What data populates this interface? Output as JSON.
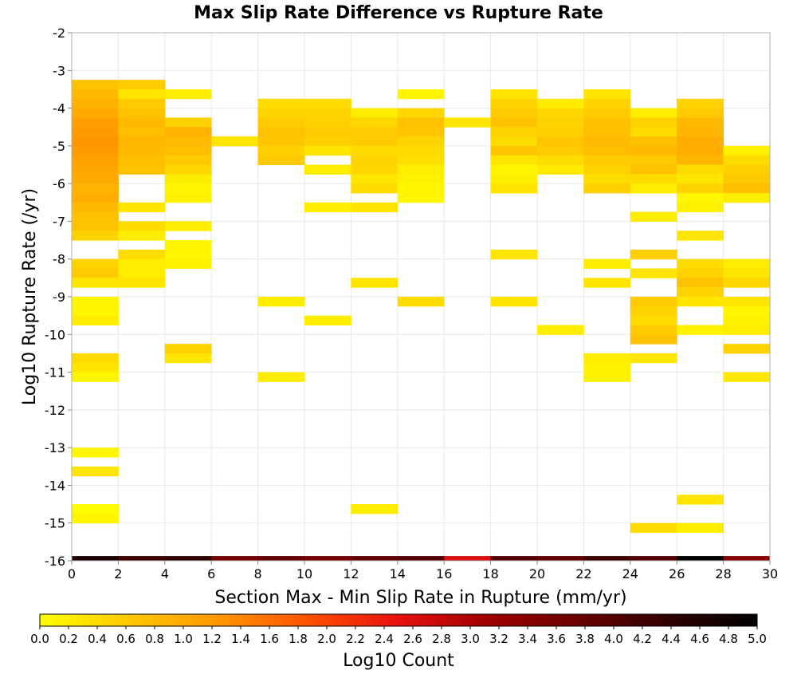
{
  "chart_data": {
    "type": "heatmap",
    "title": "Max Slip Rate Difference vs Rupture Rate",
    "xlabel": "Section Max - Min Slip Rate in Rupture (mm/yr)",
    "ylabel": "Log10 Rupture Rate (/yr)",
    "xlim": [
      0,
      30
    ],
    "ylim": [
      -16,
      -2
    ],
    "x_ticks": [
      "0",
      "2",
      "4",
      "6",
      "8",
      "10",
      "12",
      "14",
      "16",
      "18",
      "20",
      "22",
      "24",
      "26",
      "28",
      "30"
    ],
    "y_ticks": [
      "-2",
      "-3",
      "-4",
      "-5",
      "-6",
      "-7",
      "-8",
      "-9",
      "-10",
      "-11",
      "-12",
      "-13",
      "-14",
      "-15",
      "-16"
    ],
    "x_bin_width": 2,
    "y_bin_height": 0.25,
    "grid": true,
    "colorbar": {
      "label": "Log10 Count",
      "range": [
        0,
        5
      ],
      "ticks": [
        "0.0",
        "0.2",
        "0.4",
        "0.6",
        "0.8",
        "1.0",
        "1.2",
        "1.4",
        "1.6",
        "1.8",
        "2.0",
        "2.2",
        "2.4",
        "2.6",
        "2.8",
        "3.0",
        "3.2",
        "3.4",
        "3.6",
        "3.8",
        "4.0",
        "4.2",
        "4.4",
        "4.6",
        "4.8",
        "5.0"
      ],
      "colors": [
        "#ffff00",
        "#ffc800",
        "#ff9600",
        "#ff5000",
        "#e81010",
        "#a00000",
        "#6a0000",
        "#300000",
        "#000000"
      ]
    },
    "cells": [
      {
        "x": 1,
        "y": -3.375,
        "v": 0.7
      },
      {
        "x": 1,
        "y": -3.625,
        "v": 0.8
      },
      {
        "x": 1,
        "y": -3.875,
        "v": 0.9
      },
      {
        "x": 1,
        "y": -4.125,
        "v": 1.0
      },
      {
        "x": 1,
        "y": -4.375,
        "v": 1.15
      },
      {
        "x": 1,
        "y": -4.625,
        "v": 1.2
      },
      {
        "x": 1,
        "y": -4.875,
        "v": 1.25
      },
      {
        "x": 1,
        "y": -5.125,
        "v": 1.2
      },
      {
        "x": 1,
        "y": -5.375,
        "v": 1.1
      },
      {
        "x": 1,
        "y": -5.625,
        "v": 1.05
      },
      {
        "x": 1,
        "y": -5.875,
        "v": 1.0
      },
      {
        "x": 1,
        "y": -6.125,
        "v": 0.9
      },
      {
        "x": 1,
        "y": -6.375,
        "v": 0.95
      },
      {
        "x": 1,
        "y": -6.625,
        "v": 0.8
      },
      {
        "x": 1,
        "y": -6.875,
        "v": 0.7
      },
      {
        "x": 1,
        "y": -7.125,
        "v": 0.7
      },
      {
        "x": 1,
        "y": -7.375,
        "v": 0.5
      },
      {
        "x": 1,
        "y": -8.125,
        "v": 0.5
      },
      {
        "x": 1,
        "y": -8.375,
        "v": 0.6
      },
      {
        "x": 1,
        "y": -8.625,
        "v": 0.3
      },
      {
        "x": 1,
        "y": -9.125,
        "v": 0.1
      },
      {
        "x": 1,
        "y": -9.375,
        "v": 0.1
      },
      {
        "x": 1,
        "y": -9.625,
        "v": 0.2
      },
      {
        "x": 1,
        "y": -10.625,
        "v": 0.4
      },
      {
        "x": 1,
        "y": -10.875,
        "v": 0.3
      },
      {
        "x": 1,
        "y": -11.125,
        "v": 0.1
      },
      {
        "x": 1,
        "y": -13.125,
        "v": 0.1
      },
      {
        "x": 1,
        "y": -13.625,
        "v": 0.3
      },
      {
        "x": 1,
        "y": -14.625,
        "v": 0.05
      },
      {
        "x": 1,
        "y": -14.875,
        "v": 0.1
      },
      {
        "x": 3,
        "y": -3.375,
        "v": 0.6
      },
      {
        "x": 3,
        "y": -3.625,
        "v": 0.3
      },
      {
        "x": 3,
        "y": -3.875,
        "v": 0.6
      },
      {
        "x": 3,
        "y": -4.125,
        "v": 0.7
      },
      {
        "x": 3,
        "y": -4.375,
        "v": 0.8
      },
      {
        "x": 3,
        "y": -4.625,
        "v": 0.75
      },
      {
        "x": 3,
        "y": -4.875,
        "v": 0.85
      },
      {
        "x": 3,
        "y": -5.125,
        "v": 0.8
      },
      {
        "x": 3,
        "y": -5.375,
        "v": 0.75
      },
      {
        "x": 3,
        "y": -5.625,
        "v": 0.7
      },
      {
        "x": 3,
        "y": -6.625,
        "v": 0.3
      },
      {
        "x": 3,
        "y": -7.125,
        "v": 0.4
      },
      {
        "x": 3,
        "y": -7.375,
        "v": 0.2
      },
      {
        "x": 3,
        "y": -7.875,
        "v": 0.4
      },
      {
        "x": 3,
        "y": -8.125,
        "v": 0.2
      },
      {
        "x": 3,
        "y": -8.375,
        "v": 0.2
      },
      {
        "x": 3,
        "y": -8.625,
        "v": 0.3
      },
      {
        "x": 5,
        "y": -3.625,
        "v": 0.2
      },
      {
        "x": 5,
        "y": -4.375,
        "v": 0.5
      },
      {
        "x": 5,
        "y": -4.625,
        "v": 0.9
      },
      {
        "x": 5,
        "y": -4.875,
        "v": 0.8
      },
      {
        "x": 5,
        "y": -5.125,
        "v": 0.75
      },
      {
        "x": 5,
        "y": -5.375,
        "v": 0.6
      },
      {
        "x": 5,
        "y": -5.625,
        "v": 0.45
      },
      {
        "x": 5,
        "y": -5.875,
        "v": 0.2
      },
      {
        "x": 5,
        "y": -6.125,
        "v": 0.1
      },
      {
        "x": 5,
        "y": -6.375,
        "v": 0.15
      },
      {
        "x": 5,
        "y": -7.125,
        "v": 0.2
      },
      {
        "x": 5,
        "y": -7.625,
        "v": 0.1
      },
      {
        "x": 5,
        "y": -7.875,
        "v": 0.1
      },
      {
        "x": 5,
        "y": -8.125,
        "v": 0.15
      },
      {
        "x": 5,
        "y": -10.375,
        "v": 0.5
      },
      {
        "x": 5,
        "y": -10.625,
        "v": 0.3
      },
      {
        "x": 7,
        "y": -4.875,
        "v": 0.3
      },
      {
        "x": 9,
        "y": -3.875,
        "v": 0.4
      },
      {
        "x": 9,
        "y": -4.125,
        "v": 0.5
      },
      {
        "x": 9,
        "y": -4.375,
        "v": 0.6
      },
      {
        "x": 9,
        "y": -4.625,
        "v": 0.7
      },
      {
        "x": 9,
        "y": -4.875,
        "v": 0.65
      },
      {
        "x": 9,
        "y": -5.125,
        "v": 0.55
      },
      {
        "x": 9,
        "y": -5.375,
        "v": 0.6
      },
      {
        "x": 9,
        "y": -9.125,
        "v": 0.2
      },
      {
        "x": 9,
        "y": -11.125,
        "v": 0.2
      },
      {
        "x": 11,
        "y": -3.875,
        "v": 0.4
      },
      {
        "x": 11,
        "y": -4.125,
        "v": 0.5
      },
      {
        "x": 11,
        "y": -4.375,
        "v": 0.55
      },
      {
        "x": 11,
        "y": -4.625,
        "v": 0.6
      },
      {
        "x": 11,
        "y": -4.875,
        "v": 0.55
      },
      {
        "x": 11,
        "y": -5.125,
        "v": 0.3
      },
      {
        "x": 11,
        "y": -5.625,
        "v": 0.2
      },
      {
        "x": 11,
        "y": -6.625,
        "v": 0.2
      },
      {
        "x": 11,
        "y": -9.625,
        "v": 0.2
      },
      {
        "x": 13,
        "y": -4.125,
        "v": 0.2
      },
      {
        "x": 13,
        "y": -4.375,
        "v": 0.45
      },
      {
        "x": 13,
        "y": -4.625,
        "v": 0.6
      },
      {
        "x": 13,
        "y": -4.875,
        "v": 0.6
      },
      {
        "x": 13,
        "y": -5.125,
        "v": 0.4
      },
      {
        "x": 13,
        "y": -5.375,
        "v": 0.5
      },
      {
        "x": 13,
        "y": -5.625,
        "v": 0.45
      },
      {
        "x": 13,
        "y": -5.875,
        "v": 0.3
      },
      {
        "x": 13,
        "y": -6.125,
        "v": 0.4
      },
      {
        "x": 13,
        "y": -6.625,
        "v": 0.3
      },
      {
        "x": 13,
        "y": -8.625,
        "v": 0.3
      },
      {
        "x": 13,
        "y": -14.625,
        "v": 0.2
      },
      {
        "x": 15,
        "y": -3.625,
        "v": 0.1
      },
      {
        "x": 15,
        "y": -4.125,
        "v": 0.45
      },
      {
        "x": 15,
        "y": -4.375,
        "v": 0.7
      },
      {
        "x": 15,
        "y": -4.625,
        "v": 0.65
      },
      {
        "x": 15,
        "y": -4.875,
        "v": 0.5
      },
      {
        "x": 15,
        "y": -5.125,
        "v": 0.4
      },
      {
        "x": 15,
        "y": -5.375,
        "v": 0.35
      },
      {
        "x": 15,
        "y": -5.625,
        "v": 0.2
      },
      {
        "x": 15,
        "y": -5.875,
        "v": 0.15
      },
      {
        "x": 15,
        "y": -6.125,
        "v": 0.1
      },
      {
        "x": 15,
        "y": -6.375,
        "v": 0.1
      },
      {
        "x": 15,
        "y": -9.125,
        "v": 0.4
      },
      {
        "x": 17,
        "y": -4.375,
        "v": 0.3
      },
      {
        "x": 19,
        "y": -3.625,
        "v": 0.3
      },
      {
        "x": 19,
        "y": -3.875,
        "v": 0.5
      },
      {
        "x": 19,
        "y": -4.125,
        "v": 0.6
      },
      {
        "x": 19,
        "y": -4.375,
        "v": 0.7
      },
      {
        "x": 19,
        "y": -4.625,
        "v": 0.5
      },
      {
        "x": 19,
        "y": -4.875,
        "v": 0.4
      },
      {
        "x": 19,
        "y": -5.125,
        "v": 0.65
      },
      {
        "x": 19,
        "y": -5.375,
        "v": 0.3
      },
      {
        "x": 19,
        "y": -5.625,
        "v": 0.1
      },
      {
        "x": 19,
        "y": -5.875,
        "v": 0.15
      },
      {
        "x": 19,
        "y": -6.125,
        "v": 0.3
      },
      {
        "x": 19,
        "y": -7.875,
        "v": 0.3
      },
      {
        "x": 19,
        "y": -9.125,
        "v": 0.3
      },
      {
        "x": 21,
        "y": -3.875,
        "v": 0.2
      },
      {
        "x": 21,
        "y": -4.125,
        "v": 0.45
      },
      {
        "x": 21,
        "y": -4.375,
        "v": 0.5
      },
      {
        "x": 21,
        "y": -4.625,
        "v": 0.55
      },
      {
        "x": 21,
        "y": -4.875,
        "v": 0.65
      },
      {
        "x": 21,
        "y": -5.125,
        "v": 0.6
      },
      {
        "x": 21,
        "y": -5.375,
        "v": 0.4
      },
      {
        "x": 21,
        "y": -5.625,
        "v": 0.25
      },
      {
        "x": 21,
        "y": -9.875,
        "v": 0.2
      },
      {
        "x": 23,
        "y": -3.625,
        "v": 0.3
      },
      {
        "x": 23,
        "y": -3.875,
        "v": 0.5
      },
      {
        "x": 23,
        "y": -4.125,
        "v": 0.6
      },
      {
        "x": 23,
        "y": -4.375,
        "v": 0.7
      },
      {
        "x": 23,
        "y": -4.625,
        "v": 0.75
      },
      {
        "x": 23,
        "y": -4.875,
        "v": 0.8
      },
      {
        "x": 23,
        "y": -5.125,
        "v": 0.75
      },
      {
        "x": 23,
        "y": -5.375,
        "v": 0.6
      },
      {
        "x": 23,
        "y": -5.625,
        "v": 0.5
      },
      {
        "x": 23,
        "y": -5.875,
        "v": 0.4
      },
      {
        "x": 23,
        "y": -6.125,
        "v": 0.55
      },
      {
        "x": 23,
        "y": -8.125,
        "v": 0.2
      },
      {
        "x": 23,
        "y": -8.625,
        "v": 0.3
      },
      {
        "x": 23,
        "y": -10.625,
        "v": 0.2
      },
      {
        "x": 23,
        "y": -10.875,
        "v": 0.15
      },
      {
        "x": 23,
        "y": -11.125,
        "v": 0.15
      },
      {
        "x": 25,
        "y": -4.125,
        "v": 0.2
      },
      {
        "x": 25,
        "y": -4.375,
        "v": 0.5
      },
      {
        "x": 25,
        "y": -4.625,
        "v": 0.4
      },
      {
        "x": 25,
        "y": -4.875,
        "v": 0.7
      },
      {
        "x": 25,
        "y": -5.125,
        "v": 0.8
      },
      {
        "x": 25,
        "y": -5.375,
        "v": 0.6
      },
      {
        "x": 25,
        "y": -5.625,
        "v": 0.7
      },
      {
        "x": 25,
        "y": -5.875,
        "v": 0.4
      },
      {
        "x": 25,
        "y": -6.125,
        "v": 0.2
      },
      {
        "x": 25,
        "y": -6.875,
        "v": 0.2
      },
      {
        "x": 25,
        "y": -7.875,
        "v": 0.55
      },
      {
        "x": 25,
        "y": -8.375,
        "v": 0.3
      },
      {
        "x": 25,
        "y": -9.125,
        "v": 0.6
      },
      {
        "x": 25,
        "y": -9.375,
        "v": 0.5
      },
      {
        "x": 25,
        "y": -9.625,
        "v": 0.4
      },
      {
        "x": 25,
        "y": -9.875,
        "v": 0.6
      },
      {
        "x": 25,
        "y": -10.125,
        "v": 0.7
      },
      {
        "x": 25,
        "y": -10.625,
        "v": 0.3
      },
      {
        "x": 25,
        "y": -15.125,
        "v": 0.4
      },
      {
        "x": 27,
        "y": -3.875,
        "v": 0.5
      },
      {
        "x": 27,
        "y": -4.125,
        "v": 0.6
      },
      {
        "x": 27,
        "y": -4.375,
        "v": 0.8
      },
      {
        "x": 27,
        "y": -4.625,
        "v": 0.85
      },
      {
        "x": 27,
        "y": -4.875,
        "v": 0.95
      },
      {
        "x": 27,
        "y": -5.125,
        "v": 0.95
      },
      {
        "x": 27,
        "y": -5.375,
        "v": 0.85
      },
      {
        "x": 27,
        "y": -5.625,
        "v": 0.4
      },
      {
        "x": 27,
        "y": -5.875,
        "v": 0.3
      },
      {
        "x": 27,
        "y": -6.125,
        "v": 0.5
      },
      {
        "x": 27,
        "y": -6.375,
        "v": 0.1
      },
      {
        "x": 27,
        "y": -6.625,
        "v": 0.15
      },
      {
        "x": 27,
        "y": -7.375,
        "v": 0.3
      },
      {
        "x": 27,
        "y": -8.125,
        "v": 0.4
      },
      {
        "x": 27,
        "y": -8.375,
        "v": 0.5
      },
      {
        "x": 27,
        "y": -8.625,
        "v": 0.7
      },
      {
        "x": 27,
        "y": -8.875,
        "v": 0.5
      },
      {
        "x": 27,
        "y": -9.125,
        "v": 0.3
      },
      {
        "x": 27,
        "y": -9.875,
        "v": 0.15
      },
      {
        "x": 27,
        "y": -14.375,
        "v": 0.3
      },
      {
        "x": 27,
        "y": -15.125,
        "v": 0.2
      },
      {
        "x": 29,
        "y": -5.125,
        "v": 0.15
      },
      {
        "x": 29,
        "y": -5.375,
        "v": 0.4
      },
      {
        "x": 29,
        "y": -5.625,
        "v": 0.55
      },
      {
        "x": 29,
        "y": -5.875,
        "v": 0.6
      },
      {
        "x": 29,
        "y": -6.125,
        "v": 0.75
      },
      {
        "x": 29,
        "y": -6.375,
        "v": 0.2
      },
      {
        "x": 29,
        "y": -8.125,
        "v": 0.2
      },
      {
        "x": 29,
        "y": -8.375,
        "v": 0.3
      },
      {
        "x": 29,
        "y": -8.625,
        "v": 0.45
      },
      {
        "x": 29,
        "y": -9.125,
        "v": 0.3
      },
      {
        "x": 29,
        "y": -9.375,
        "v": 0.1
      },
      {
        "x": 29,
        "y": -9.625,
        "v": 0.15
      },
      {
        "x": 29,
        "y": -9.875,
        "v": 0.2
      },
      {
        "x": 29,
        "y": -10.375,
        "v": 0.5
      },
      {
        "x": 29,
        "y": -11.125,
        "v": 0.25
      }
    ],
    "bottom_strip": [
      {
        "x": 1,
        "v": 4.6
      },
      {
        "x": 3,
        "v": 4.2
      },
      {
        "x": 5,
        "v": 4.4
      },
      {
        "x": 7,
        "v": 3.6
      },
      {
        "x": 9,
        "v": 3.8
      },
      {
        "x": 11,
        "v": 3.6
      },
      {
        "x": 13,
        "v": 3.8
      },
      {
        "x": 15,
        "v": 4.0
      },
      {
        "x": 17,
        "v": 2.6
      },
      {
        "x": 19,
        "v": 4.0
      },
      {
        "x": 21,
        "v": 3.8
      },
      {
        "x": 23,
        "v": 4.2
      },
      {
        "x": 25,
        "v": 4.0
      },
      {
        "x": 27,
        "v": 5.0
      },
      {
        "x": 29,
        "v": 3.4
      }
    ]
  }
}
